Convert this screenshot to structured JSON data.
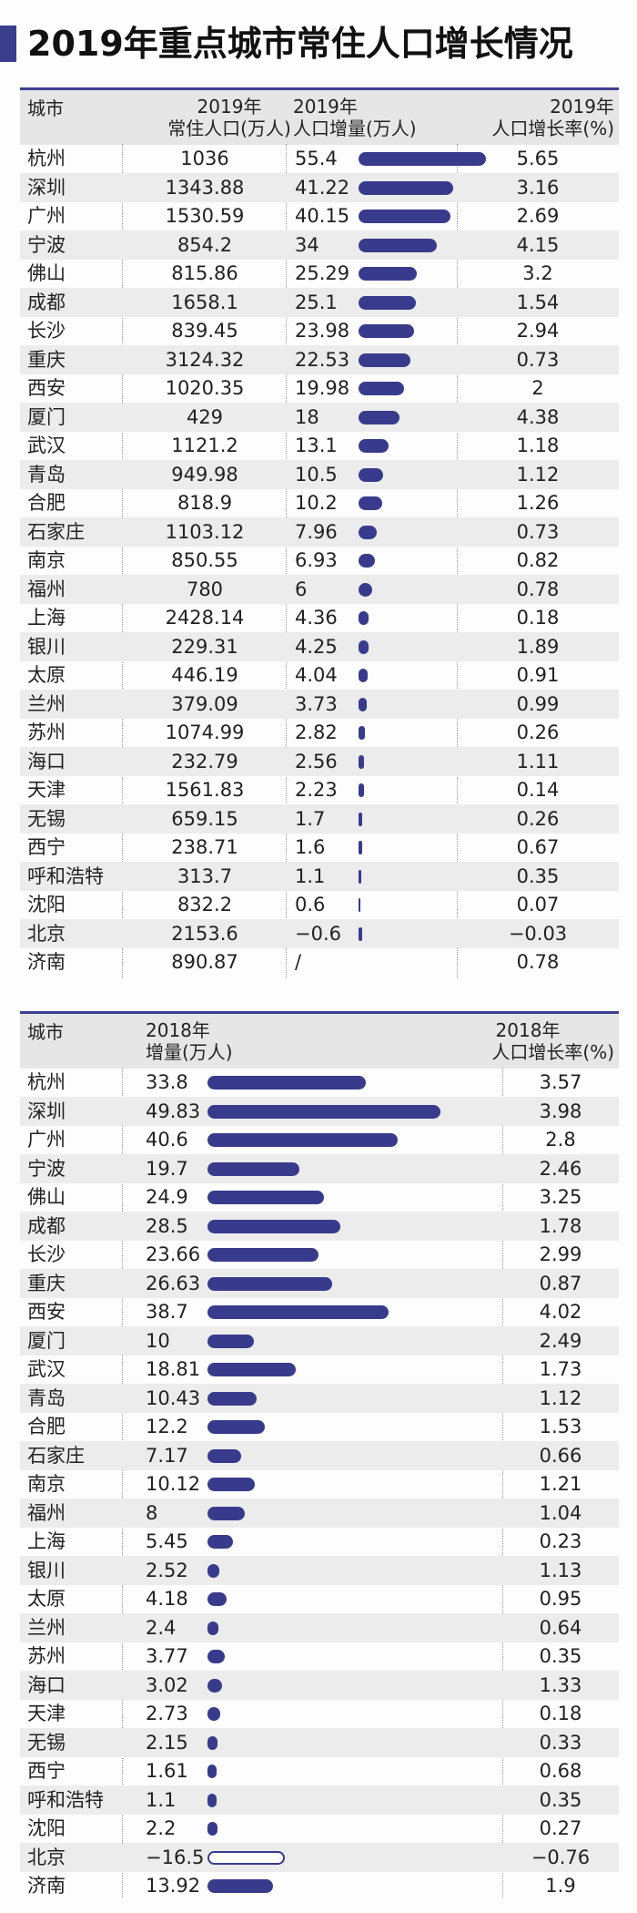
{
  "title": "2019年重点城市常住人口增长情况",
  "colors": {
    "accent": "#383b8c",
    "header_bg": "#e6e6e6",
    "row_shade": "#ececec"
  },
  "table1": {
    "headers": {
      "city": "城市",
      "pop_l1": "2019年",
      "pop_l2": "常住人口(万人)",
      "inc_l1": "2019年",
      "inc_l2": "人口增量(万人)",
      "rate_l1": "2019年",
      "rate_l2": "人口增长率(%)"
    },
    "rows": [
      {
        "city": "杭州",
        "pop": "1036",
        "inc": "55.4",
        "rate": "5.65"
      },
      {
        "city": "深圳",
        "pop": "1343.88",
        "inc": "41.22",
        "rate": "3.16"
      },
      {
        "city": "广州",
        "pop": "1530.59",
        "inc": "40.15",
        "rate": "2.69"
      },
      {
        "city": "宁波",
        "pop": "854.2",
        "inc": "34",
        "rate": "4.15"
      },
      {
        "city": "佛山",
        "pop": "815.86",
        "inc": "25.29",
        "rate": "3.2"
      },
      {
        "city": "成都",
        "pop": "1658.1",
        "inc": "25.1",
        "rate": "1.54"
      },
      {
        "city": "长沙",
        "pop": "839.45",
        "inc": "23.98",
        "rate": "2.94"
      },
      {
        "city": "重庆",
        "pop": "3124.32",
        "inc": "22.53",
        "rate": "0.73"
      },
      {
        "city": "西安",
        "pop": "1020.35",
        "inc": "19.98",
        "rate": "2"
      },
      {
        "city": "厦门",
        "pop": "429",
        "inc": "18",
        "rate": "4.38"
      },
      {
        "city": "武汉",
        "pop": "1121.2",
        "inc": "13.1",
        "rate": "1.18"
      },
      {
        "city": "青岛",
        "pop": "949.98",
        "inc": "10.5",
        "rate": "1.12"
      },
      {
        "city": "合肥",
        "pop": "818.9",
        "inc": "10.2",
        "rate": "1.26"
      },
      {
        "city": "石家庄",
        "pop": "1103.12",
        "inc": "7.96",
        "rate": "0.73"
      },
      {
        "city": "南京",
        "pop": "850.55",
        "inc": "6.93",
        "rate": "0.82"
      },
      {
        "city": "福州",
        "pop": "780",
        "inc": "6",
        "rate": "0.78"
      },
      {
        "city": "上海",
        "pop": "2428.14",
        "inc": "4.36",
        "rate": "0.18"
      },
      {
        "city": "银川",
        "pop": "229.31",
        "inc": "4.25",
        "rate": "1.89"
      },
      {
        "city": "太原",
        "pop": "446.19",
        "inc": "4.04",
        "rate": "0.91"
      },
      {
        "city": "兰州",
        "pop": "379.09",
        "inc": "3.73",
        "rate": "0.99"
      },
      {
        "city": "苏州",
        "pop": "1074.99",
        "inc": "2.82",
        "rate": "0.26"
      },
      {
        "city": "海口",
        "pop": "232.79",
        "inc": "2.56",
        "rate": "1.11"
      },
      {
        "city": "天津",
        "pop": "1561.83",
        "inc": "2.23",
        "rate": "0.14"
      },
      {
        "city": "无锡",
        "pop": "659.15",
        "inc": "1.7",
        "rate": "0.26"
      },
      {
        "city": "西宁",
        "pop": "238.71",
        "inc": "1.6",
        "rate": "0.67"
      },
      {
        "city": "呼和浩特",
        "pop": "313.7",
        "inc": "1.1",
        "rate": "0.35"
      },
      {
        "city": "沈阳",
        "pop": "832.2",
        "inc": "0.6",
        "rate": "0.07"
      },
      {
        "city": "北京",
        "pop": "2153.6",
        "inc": "−0.6",
        "rate": "−0.03"
      },
      {
        "city": "济南",
        "pop": "890.87",
        "inc": "/",
        "rate": "0.78"
      }
    ]
  },
  "table2": {
    "headers": {
      "city": "城市",
      "inc_l1": "2018年",
      "inc_l2": "增量(万人)",
      "rate_l1": "2018年",
      "rate_l2": "人口增长率(%)"
    },
    "rows": [
      {
        "city": "杭州",
        "inc": "33.8",
        "rate": "3.57"
      },
      {
        "city": "深圳",
        "inc": "49.83",
        "rate": "3.98"
      },
      {
        "city": "广州",
        "inc": "40.6",
        "rate": "2.8"
      },
      {
        "city": "宁波",
        "inc": "19.7",
        "rate": "2.46"
      },
      {
        "city": "佛山",
        "inc": "24.9",
        "rate": "3.25"
      },
      {
        "city": "成都",
        "inc": "28.5",
        "rate": "1.78"
      },
      {
        "city": "长沙",
        "inc": "23.66",
        "rate": "2.99"
      },
      {
        "city": "重庆",
        "inc": "26.63",
        "rate": "0.87"
      },
      {
        "city": "西安",
        "inc": "38.7",
        "rate": "4.02"
      },
      {
        "city": "厦门",
        "inc": "10",
        "rate": "2.49"
      },
      {
        "city": "武汉",
        "inc": "18.81",
        "rate": "1.73"
      },
      {
        "city": "青岛",
        "inc": "10.43",
        "rate": "1.12"
      },
      {
        "city": "合肥",
        "inc": "12.2",
        "rate": "1.53"
      },
      {
        "city": "石家庄",
        "inc": "7.17",
        "rate": "0.66"
      },
      {
        "city": "南京",
        "inc": "10.12",
        "rate": "1.21"
      },
      {
        "city": "福州",
        "inc": "8",
        "rate": "1.04"
      },
      {
        "city": "上海",
        "inc": "5.45",
        "rate": "0.23"
      },
      {
        "city": "银川",
        "inc": "2.52",
        "rate": "1.13"
      },
      {
        "city": "太原",
        "inc": "4.18",
        "rate": "0.95"
      },
      {
        "city": "兰州",
        "inc": "2.4",
        "rate": "0.64"
      },
      {
        "city": "苏州",
        "inc": "3.77",
        "rate": "0.35"
      },
      {
        "city": "海口",
        "inc": "3.02",
        "rate": "1.33"
      },
      {
        "city": "天津",
        "inc": "2.73",
        "rate": "0.18"
      },
      {
        "city": "无锡",
        "inc": "2.15",
        "rate": "0.33"
      },
      {
        "city": "西宁",
        "inc": "1.61",
        "rate": "0.68"
      },
      {
        "city": "呼和浩特",
        "inc": "1.1",
        "rate": "0.35"
      },
      {
        "city": "沈阳",
        "inc": "2.2",
        "rate": "0.27"
      },
      {
        "city": "北京",
        "inc": "−16.5",
        "rate": "−0.76"
      },
      {
        "city": "济南",
        "inc": "13.92",
        "rate": "1.9"
      }
    ]
  },
  "chart_data": [
    {
      "type": "bar",
      "orientation": "horizontal",
      "categories": [
        "杭州",
        "深圳",
        "广州",
        "宁波",
        "佛山",
        "成都",
        "长沙",
        "重庆",
        "西安",
        "厦门",
        "武汉",
        "青岛",
        "合肥",
        "石家庄",
        "南京",
        "福州",
        "上海",
        "银川",
        "太原",
        "兰州",
        "苏州",
        "海口",
        "天津",
        "无锡",
        "西宁",
        "呼和浩特",
        "沈阳",
        "北京",
        "济南"
      ],
      "values": [
        55.4,
        41.22,
        40.15,
        34,
        25.29,
        25.1,
        23.98,
        22.53,
        19.98,
        18,
        13.1,
        10.5,
        10.2,
        7.96,
        6.93,
        6,
        4.36,
        4.25,
        4.04,
        3.73,
        2.82,
        2.56,
        2.23,
        1.7,
        1.6,
        1.1,
        0.6,
        -0.6,
        null
      ],
      "ylabel": "人口增量(万人)"
    },
    {
      "type": "bar",
      "orientation": "horizontal",
      "categories": [
        "杭州",
        "深圳",
        "广州",
        "宁波",
        "佛山",
        "成都",
        "长沙",
        "重庆",
        "西安",
        "厦门",
        "武汉",
        "青岛",
        "合肥",
        "石家庄",
        "南京",
        "福州",
        "上海",
        "银川",
        "太原",
        "兰州",
        "苏州",
        "海口",
        "天津",
        "无锡",
        "西宁",
        "呼和浩特",
        "沈阳",
        "北京",
        "济南"
      ],
      "values": [
        33.8,
        49.83,
        40.6,
        19.7,
        24.9,
        28.5,
        23.66,
        26.63,
        38.7,
        10,
        18.81,
        10.43,
        12.2,
        7.17,
        10.12,
        8,
        5.45,
        2.52,
        4.18,
        2.4,
        3.77,
        3.02,
        2.73,
        2.15,
        1.61,
        1.1,
        2.2,
        -16.5,
        13.92
      ],
      "ylabel": "增量(万人)"
    }
  ]
}
